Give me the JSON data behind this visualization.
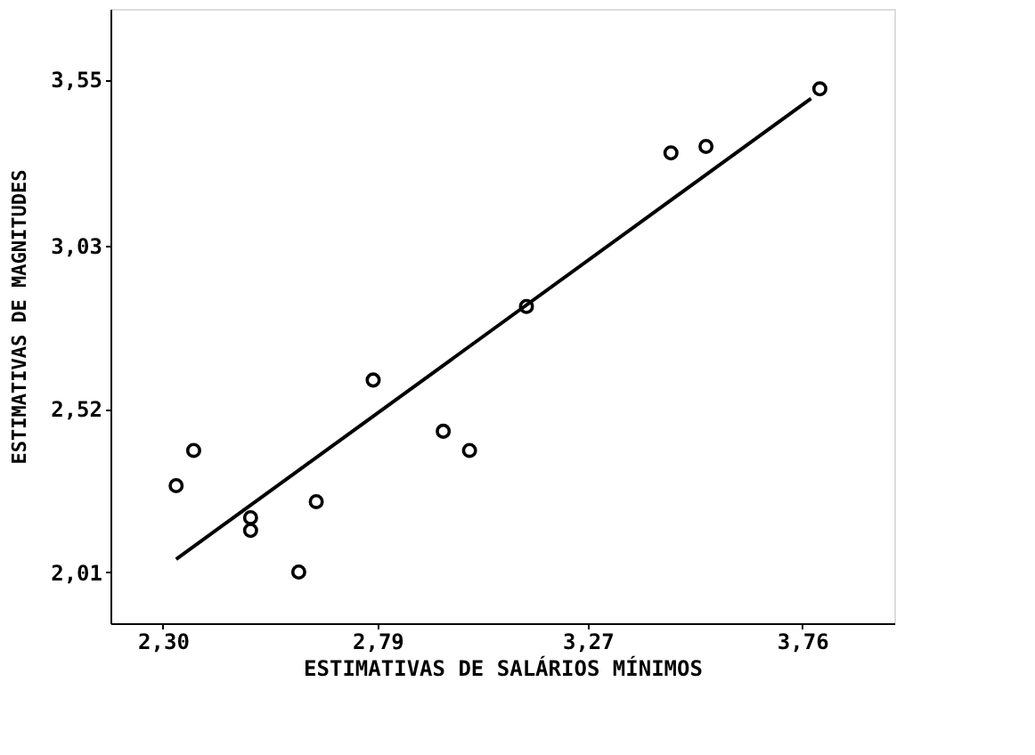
{
  "chart_data": {
    "type": "scatter",
    "xlabel": "ESTIMATIVAS DE SALÁRIOS MÍNIMOS",
    "ylabel": "ESTIMATIVAS DE MAGNITUDES",
    "xlim": [
      2.18,
      3.97
    ],
    "ylim": [
      1.85,
      3.77
    ],
    "xticks": [
      {
        "value": 2.3,
        "label": "2,30"
      },
      {
        "value": 2.79,
        "label": "2,79"
      },
      {
        "value": 3.27,
        "label": "3,27"
      },
      {
        "value": 3.76,
        "label": "3,76"
      }
    ],
    "yticks": [
      {
        "value": 2.01,
        "label": "2,01"
      },
      {
        "value": 2.52,
        "label": "2,52"
      },
      {
        "value": 3.03,
        "label": "3,03"
      },
      {
        "value": 3.55,
        "label": "3,55"
      }
    ],
    "grid": false,
    "series": [
      {
        "marker": "circle",
        "color": "#000000",
        "x": [
          2.33,
          2.37,
          2.5,
          2.5,
          2.61,
          2.65,
          2.78,
          2.94,
          3.0,
          3.13,
          3.46,
          3.54,
          3.8
        ],
        "values": [
          2.28,
          2.39,
          2.18,
          2.14,
          2.01,
          2.23,
          2.61,
          2.45,
          2.39,
          2.84,
          3.32,
          3.34,
          3.52
        ]
      },
      {
        "type": "line",
        "color": "#000000",
        "x": [
          2.33,
          3.78
        ],
        "values": [
          2.05,
          3.49
        ]
      }
    ]
  }
}
